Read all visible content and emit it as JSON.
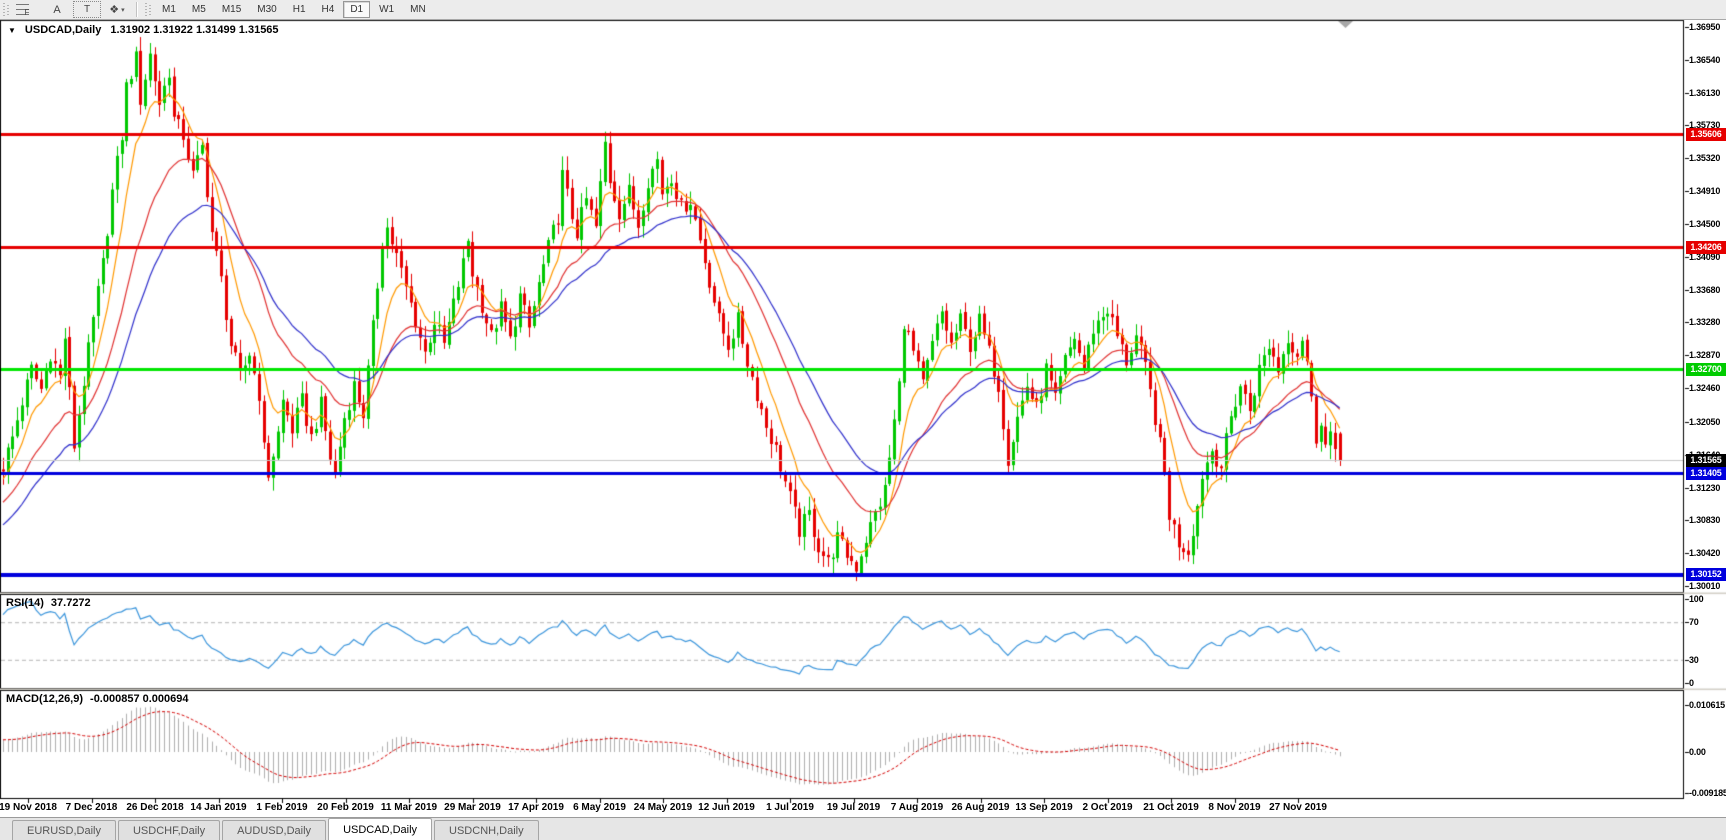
{
  "toolbar": {
    "tools": [
      {
        "name": "fibonacci-retracement-tool",
        "glyph": "F"
      },
      {
        "name": "text-tool",
        "glyph": "A"
      },
      {
        "name": "text-label-tool",
        "glyph": "T"
      },
      {
        "name": "arrows-tool",
        "glyph": "❖"
      }
    ],
    "timeframes": [
      "M1",
      "M5",
      "M15",
      "M30",
      "H1",
      "H4",
      "D1",
      "W1",
      "MN"
    ],
    "active_timeframe": "D1"
  },
  "chart": {
    "title": "USDCAD,Daily",
    "ohlc_text": "1.31902 1.31922 1.31499 1.31565",
    "menu_icon": "▼"
  },
  "price_axis": {
    "ticks": [
      "1.36950",
      "1.36540",
      "1.36130",
      "1.35730",
      "1.35320",
      "1.34910",
      "1.34500",
      "1.34090",
      "1.33680",
      "1.33280",
      "1.32870",
      "1.32460",
      "1.32050",
      "1.31640",
      "1.31230",
      "1.30830",
      "1.30420",
      "1.30010"
    ],
    "tags": [
      {
        "text": "1.35606",
        "price": 1.35606,
        "bg": "#e60000",
        "fg": "#ffffff"
      },
      {
        "text": "1.34206",
        "price": 1.34206,
        "bg": "#e60000",
        "fg": "#ffffff"
      },
      {
        "text": "1.32700",
        "price": 1.327,
        "bg": "#00cc00",
        "fg": "#ffffff"
      },
      {
        "text": "1.31565",
        "price": 1.31565,
        "bg": "#000000",
        "fg": "#ffffff"
      },
      {
        "text": "1.31405",
        "price": 1.31405,
        "bg": "#0000dd",
        "fg": "#ffffff"
      },
      {
        "text": "1.30152",
        "price": 1.30152,
        "bg": "#0000dd",
        "fg": "#ffffff"
      }
    ]
  },
  "date_axis": {
    "labels": [
      "19 Nov 2018",
      "7 Dec 2018",
      "26 Dec 2018",
      "14 Jan 2019",
      "1 Feb 2019",
      "20 Feb 2019",
      "11 Mar 2019",
      "29 Mar 2019",
      "17 Apr 2019",
      "6 May 2019",
      "24 May 2019",
      "12 Jun 2019",
      "1 Jul 2019",
      "19 Jul 2019",
      "7 Aug 2019",
      "26 Aug 2019",
      "13 Sep 2019",
      "2 Oct 2019",
      "21 Oct 2019",
      "8 Nov 2019",
      "27 Nov 2019"
    ]
  },
  "rsi": {
    "label": "RSI(14)",
    "value": "37.7272",
    "axis_labels": [
      {
        "text": "100",
        "value": 100
      },
      {
        "text": "70",
        "value": 70
      },
      {
        "text": "30",
        "value": 30
      },
      {
        "text": "0",
        "value": 0
      }
    ]
  },
  "macd": {
    "label": "MACD(12,26,9)",
    "values": "-0.000857 0.000694",
    "axis_labels": [
      {
        "text": "0.010615",
        "value": 0.010615
      },
      {
        "text": "0.00",
        "value": 0
      },
      {
        "text": "-0.009185",
        "value": -0.009185
      }
    ]
  },
  "tabs": {
    "items": [
      "EURUSD,Daily",
      "USDCHF,Daily",
      "AUDUSD,Daily",
      "USDCAD,Daily",
      "USDCNH,Daily"
    ],
    "active_index": 3
  },
  "chart_data": {
    "type": "candlestick+indicators",
    "symbol": "USDCAD",
    "timeframe": "Daily",
    "last_candle": {
      "open": 1.31902,
      "high": 1.31922,
      "low": 1.31499,
      "close": 1.31565
    },
    "bars": 283,
    "price_range": [
      1.29936,
      1.37031
    ],
    "bull_color": "#00c800",
    "bear_color": "#e60000",
    "close_anchors": [
      [
        0,
        1.315
      ],
      [
        2,
        1.3185
      ],
      [
        4,
        1.323
      ],
      [
        6,
        1.327
      ],
      [
        8,
        1.3245
      ],
      [
        10,
        1.329
      ],
      [
        12,
        1.326
      ],
      [
        13,
        1.331
      ],
      [
        14,
        1.324
      ],
      [
        15,
        1.3175
      ],
      [
        17,
        1.3255
      ],
      [
        19,
        1.333
      ],
      [
        21,
        1.34
      ],
      [
        23,
        1.349
      ],
      [
        25,
        1.356
      ],
      [
        26,
        1.362
      ],
      [
        28,
        1.3655
      ],
      [
        29,
        1.3605
      ],
      [
        31,
        1.366
      ],
      [
        33,
        1.36
      ],
      [
        35,
        1.364
      ],
      [
        36,
        1.358
      ],
      [
        38,
        1.356
      ],
      [
        40,
        1.351
      ],
      [
        42,
        1.3545
      ],
      [
        44,
        1.344
      ],
      [
        46,
        1.338
      ],
      [
        48,
        1.33
      ],
      [
        50,
        1.326
      ],
      [
        52,
        1.329
      ],
      [
        54,
        1.324
      ],
      [
        55,
        1.317
      ],
      [
        56,
        1.314
      ],
      [
        58,
        1.319
      ],
      [
        59,
        1.323
      ],
      [
        61,
        1.3195
      ],
      [
        63,
        1.323
      ],
      [
        65,
        1.3185
      ],
      [
        67,
        1.3225
      ],
      [
        69,
        1.316
      ],
      [
        70,
        1.314
      ],
      [
        72,
        1.321
      ],
      [
        74,
        1.325
      ],
      [
        76,
        1.3215
      ],
      [
        78,
        1.332
      ],
      [
        80,
        1.343
      ],
      [
        81,
        1.3445
      ],
      [
        83,
        1.341
      ],
      [
        85,
        1.337
      ],
      [
        87,
        1.333
      ],
      [
        89,
        1.329
      ],
      [
        91,
        1.333
      ],
      [
        93,
        1.33
      ],
      [
        95,
        1.335
      ],
      [
        97,
        1.34
      ],
      [
        98,
        1.343
      ],
      [
        99,
        1.339
      ],
      [
        101,
        1.335
      ],
      [
        103,
        1.331
      ],
      [
        105,
        1.3345
      ],
      [
        107,
        1.3305
      ],
      [
        109,
        1.336
      ],
      [
        111,
        1.332
      ],
      [
        113,
        1.3375
      ],
      [
        115,
        1.342
      ],
      [
        117,
        1.346
      ],
      [
        118,
        1.351
      ],
      [
        120,
        1.346
      ],
      [
        121,
        1.344
      ],
      [
        123,
        1.348
      ],
      [
        125,
        1.3445
      ],
      [
        127,
        1.355
      ],
      [
        128,
        1.3505
      ],
      [
        130,
        1.3465
      ],
      [
        132,
        1.349
      ],
      [
        134,
        1.345
      ],
      [
        136,
        1.3505
      ],
      [
        138,
        1.353
      ],
      [
        139,
        1.349
      ],
      [
        141,
        1.351
      ],
      [
        143,
        1.347
      ],
      [
        145,
        1.348
      ],
      [
        147,
        1.343
      ],
      [
        149,
        1.338
      ],
      [
        151,
        1.333
      ],
      [
        153,
        1.33
      ],
      [
        155,
        1.333
      ],
      [
        157,
        1.328
      ],
      [
        159,
        1.324
      ],
      [
        161,
        1.32
      ],
      [
        163,
        1.317
      ],
      [
        164,
        1.315
      ],
      [
        166,
        1.311
      ],
      [
        168,
        1.307
      ],
      [
        170,
        1.309
      ],
      [
        172,
        1.305
      ],
      [
        174,
        1.303
      ],
      [
        176,
        1.306
      ],
      [
        178,
        1.304
      ],
      [
        180,
        1.3025
      ],
      [
        182,
        1.306
      ],
      [
        184,
        1.309
      ],
      [
        186,
        1.312
      ],
      [
        187,
        1.316
      ],
      [
        189,
        1.325
      ],
      [
        190,
        1.333
      ],
      [
        192,
        1.329
      ],
      [
        194,
        1.325
      ],
      [
        196,
        1.33
      ],
      [
        198,
        1.334
      ],
      [
        200,
        1.33
      ],
      [
        202,
        1.333
      ],
      [
        204,
        1.33
      ],
      [
        206,
        1.333
      ],
      [
        208,
        1.329
      ],
      [
        210,
        1.325
      ],
      [
        212,
        1.316
      ],
      [
        214,
        1.321
      ],
      [
        216,
        1.325
      ],
      [
        218,
        1.322
      ],
      [
        220,
        1.327
      ],
      [
        222,
        1.323
      ],
      [
        224,
        1.328
      ],
      [
        226,
        1.331
      ],
      [
        228,
        1.327
      ],
      [
        230,
        1.332
      ],
      [
        233,
        1.3345
      ],
      [
        235,
        1.331
      ],
      [
        237,
        1.328
      ],
      [
        239,
        1.331
      ],
      [
        241,
        1.327
      ],
      [
        243,
        1.321
      ],
      [
        245,
        1.314
      ],
      [
        246,
        1.309
      ],
      [
        248,
        1.3055
      ],
      [
        250,
        1.3045
      ],
      [
        252,
        1.31
      ],
      [
        253,
        1.314
      ],
      [
        255,
        1.317
      ],
      [
        257,
        1.315
      ],
      [
        259,
        1.321
      ],
      [
        261,
        1.325
      ],
      [
        263,
        1.322
      ],
      [
        265,
        1.327
      ],
      [
        267,
        1.33
      ],
      [
        269,
        1.327
      ],
      [
        271,
        1.331
      ],
      [
        273,
        1.329
      ],
      [
        274,
        1.331
      ],
      [
        275,
        1.328
      ],
      [
        276,
        1.323
      ],
      [
        277,
        1.3185
      ],
      [
        278,
        1.321
      ],
      [
        279,
        1.3175
      ],
      [
        280,
        1.319
      ],
      [
        281,
        1.316
      ],
      [
        282,
        1.31565
      ]
    ],
    "special_bars": {
      "31": {
        "high": 1.367
      },
      "127": {
        "high": 1.35606
      },
      "180": {
        "low": 1.3018
      }
    },
    "moving_averages": [
      {
        "type": "ema",
        "period": 8,
        "color": "#ff9900"
      },
      {
        "type": "ema",
        "period": 21,
        "color": "#e13232"
      },
      {
        "type": "ema",
        "period": 34,
        "color": "#3030cc"
      }
    ],
    "hlines": [
      {
        "price": 1.35606,
        "color": "#e60000",
        "width": 3
      },
      {
        "price": 1.34206,
        "color": "#e60000",
        "width": 3
      },
      {
        "price": 1.327,
        "color": "#00e600",
        "width": 3
      },
      {
        "price": 1.31565,
        "color": "#c8c8c8",
        "width": 1
      },
      {
        "price": 1.31405,
        "color": "#0000dd",
        "width": 3
      },
      {
        "price": 1.30152,
        "color": "#0000dd",
        "width": 4
      }
    ],
    "rsi": {
      "period": 14,
      "color": "#3c96dc",
      "overbought": 70,
      "oversold": 30,
      "last": 37.7272
    },
    "macd": {
      "fast": 12,
      "slow": 26,
      "signal_period": 9,
      "histogram_color": "#b0b0b0",
      "signal_color": "#d40000",
      "max": 0.010615,
      "min": -0.009185,
      "last_main": -0.000857,
      "last_signal": 0.000694
    }
  }
}
